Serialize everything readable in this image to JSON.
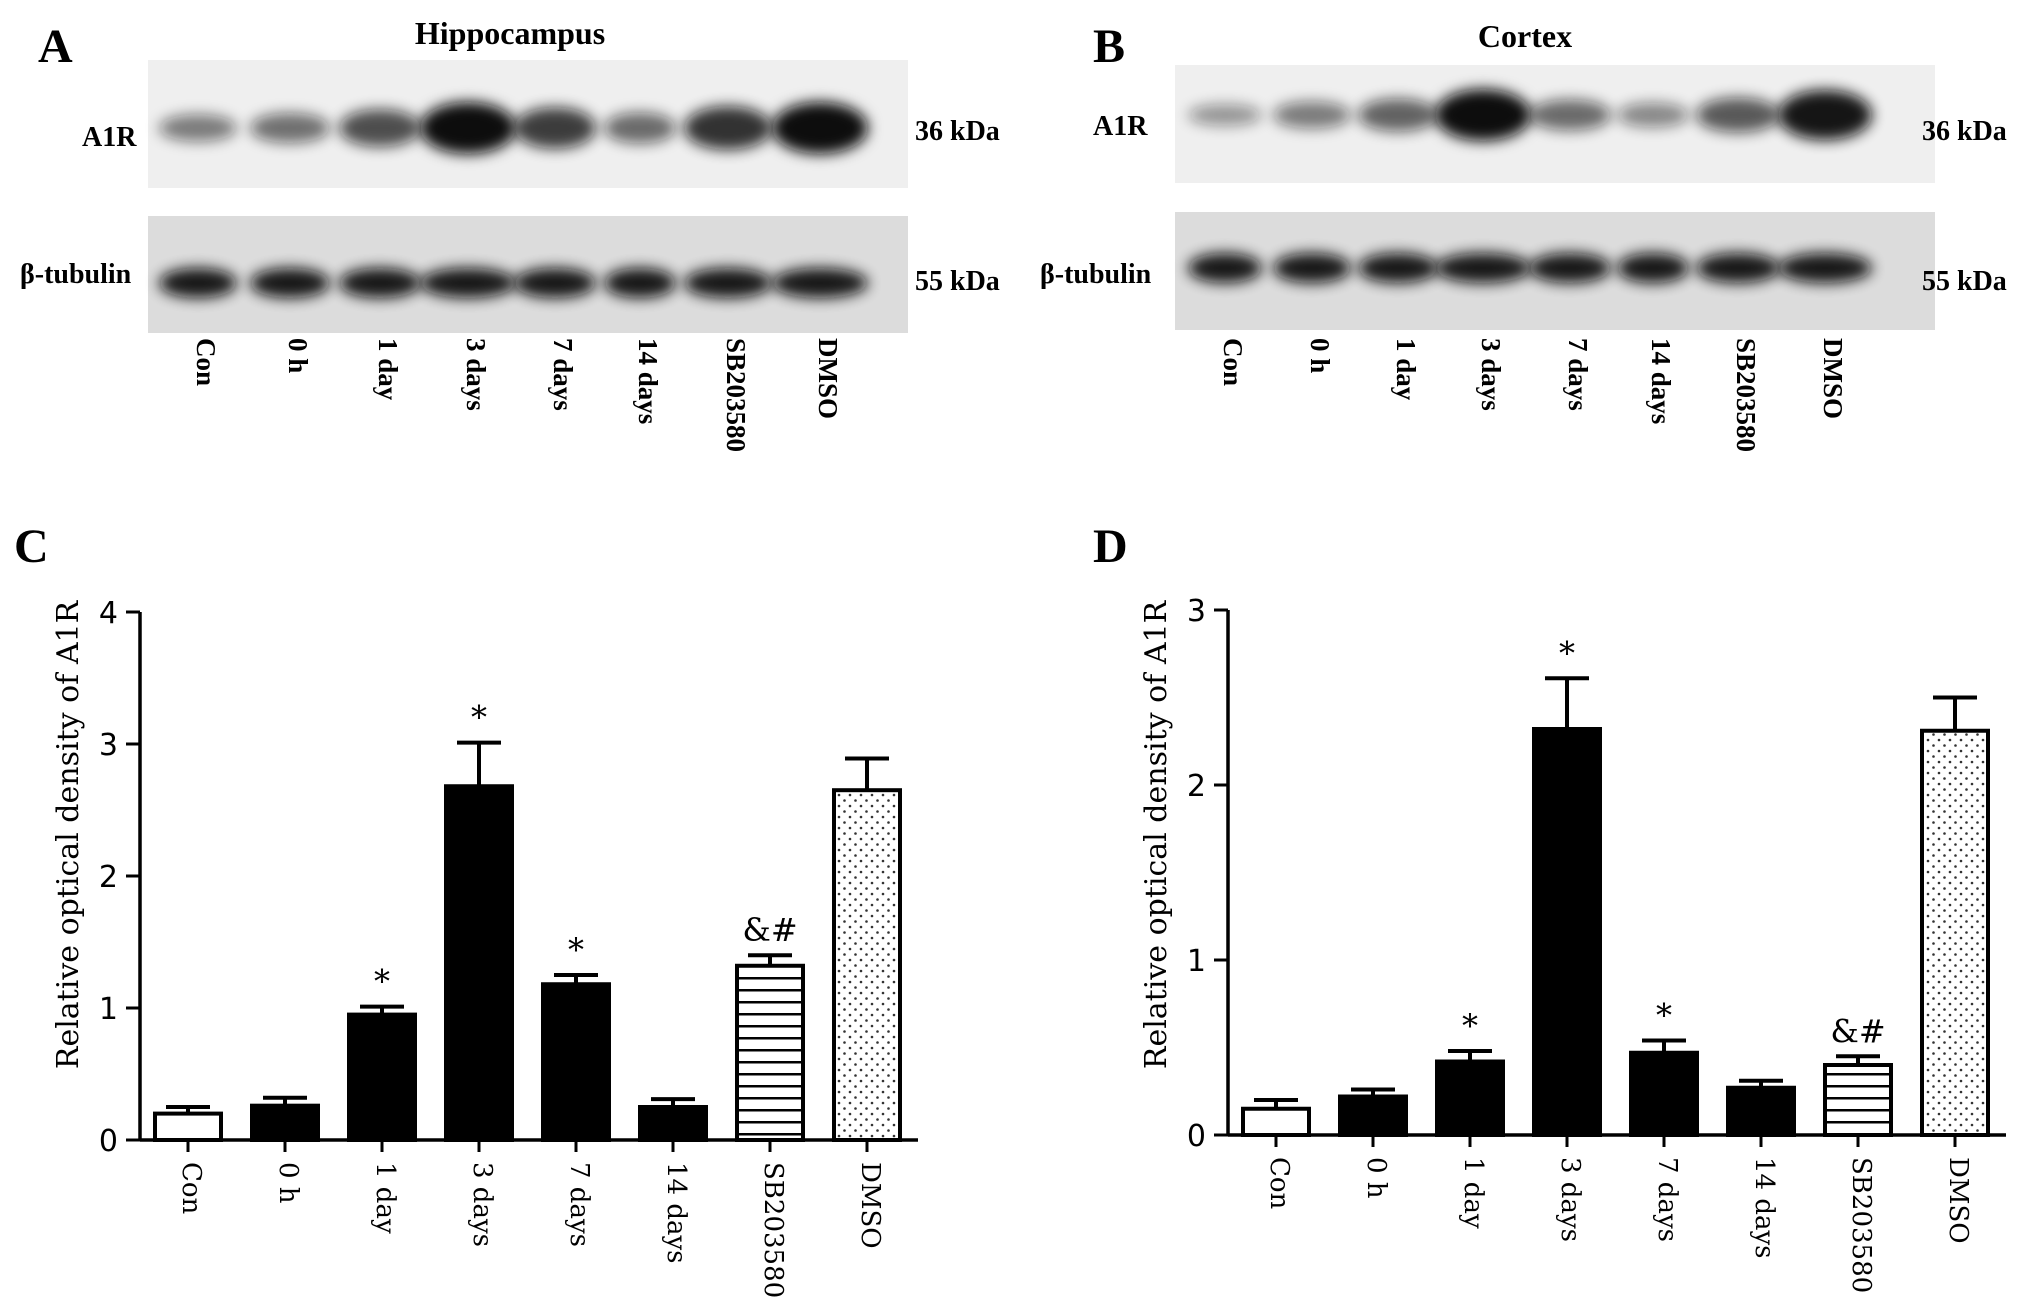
{
  "panels": [
    {
      "id": "A",
      "letter": "A",
      "title": "Hippocampus",
      "bands": [
        {
          "label": "A1R",
          "size": "36 kDa",
          "intensity": [
            0.35,
            0.42,
            0.62,
            1.0,
            0.72,
            0.45,
            0.78,
            1.0
          ]
        },
        {
          "label": "β-tubulin",
          "size": "55 kDa",
          "intensity": [
            0.95,
            0.95,
            0.95,
            0.95,
            0.95,
            0.95,
            0.95,
            0.95
          ]
        }
      ],
      "lanes": [
        "Con",
        "0 h",
        "1 day",
        "3 days",
        "7 days",
        "14 days",
        "SB203580",
        "DMSO"
      ]
    },
    {
      "id": "B",
      "letter": "B",
      "title": "Cortex",
      "bands": [
        {
          "label": "A1R",
          "size": "36 kDa",
          "intensity": [
            0.2,
            0.35,
            0.5,
            1.0,
            0.45,
            0.28,
            0.55,
            0.95
          ]
        },
        {
          "label": "β-tubulin",
          "size": "55 kDa",
          "intensity": [
            0.95,
            0.95,
            0.95,
            0.95,
            0.95,
            0.95,
            0.95,
            0.95
          ]
        }
      ],
      "lanes": [
        "Con",
        "0 h",
        "1 day",
        "3 days",
        "7 days",
        "14 days",
        "SB203580",
        "DMSO"
      ]
    }
  ],
  "chart_data": [
    {
      "id": "C",
      "letter": "C",
      "type": "bar",
      "categories": [
        "Con",
        "0 h",
        "1 day",
        "3 days",
        "7 days",
        "14 days",
        "SB203580",
        "DMSO"
      ],
      "values": [
        0.2,
        0.26,
        0.95,
        2.68,
        1.18,
        0.25,
        1.32,
        2.65
      ],
      "errors": [
        0.05,
        0.06,
        0.06,
        0.33,
        0.07,
        0.06,
        0.08,
        0.24
      ],
      "fills": [
        "white",
        "black",
        "black",
        "black",
        "black",
        "black",
        "hlines",
        "dots"
      ],
      "annotations": [
        "",
        "",
        "*",
        "*",
        "*",
        "",
        "&#",
        ""
      ],
      "ylabel": "Relative optical density of A1R",
      "ylim": [
        0,
        4
      ],
      "yticks": [
        0,
        1,
        2,
        3,
        4
      ]
    },
    {
      "id": "D",
      "letter": "D",
      "type": "bar",
      "categories": [
        "Con",
        "0 h",
        "1 day",
        "3 days",
        "7 days",
        "14 days",
        "SB203580",
        "DMSO"
      ],
      "values": [
        0.15,
        0.22,
        0.42,
        2.32,
        0.47,
        0.27,
        0.4,
        2.31
      ],
      "errors": [
        0.05,
        0.04,
        0.06,
        0.29,
        0.07,
        0.04,
        0.05,
        0.19
      ],
      "fills": [
        "white",
        "black",
        "black",
        "black",
        "black",
        "black",
        "hlines",
        "dots"
      ],
      "annotations": [
        "",
        "",
        "*",
        "*",
        "*",
        "",
        "&#",
        ""
      ],
      "ylabel": "Relative optical density of A1R",
      "ylim": [
        0,
        3
      ],
      "yticks": [
        0,
        1,
        2,
        3
      ]
    }
  ]
}
